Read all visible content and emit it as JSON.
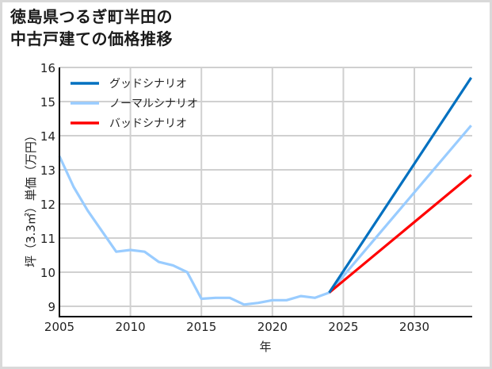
{
  "title_lines": [
    "徳島県つるぎ町半田の",
    "中古戸建ての価格推移"
  ],
  "chart_data": {
    "type": "line",
    "title": "徳島県つるぎ町半田の中古戸建ての価格推移",
    "xlabel": "年",
    "ylabel": "坪（3.3㎡）単価（万円）",
    "xlim": [
      2005,
      2034
    ],
    "ylim": [
      8.7,
      16
    ],
    "xticks": [
      2005,
      2010,
      2015,
      2020,
      2025,
      2030
    ],
    "yticks": [
      9,
      10,
      11,
      12,
      13,
      14,
      15,
      16
    ],
    "grid": true,
    "legend_position": "upper left",
    "series": [
      {
        "name": "ノーマルシナリオ",
        "role": "historical",
        "color": "#99ccff",
        "x": [
          2005,
          2006,
          2007,
          2008,
          2009,
          2010,
          2011,
          2012,
          2013,
          2014,
          2015,
          2016,
          2017,
          2018,
          2019,
          2020,
          2021,
          2022,
          2023,
          2024
        ],
        "values": [
          13.4,
          12.5,
          11.8,
          11.2,
          10.6,
          10.65,
          10.6,
          10.3,
          10.2,
          10.0,
          9.22,
          9.25,
          9.25,
          9.05,
          9.1,
          9.18,
          9.18,
          9.3,
          9.25,
          9.4
        ]
      },
      {
        "name": "グッドシナリオ",
        "color": "#0070c0",
        "x": [
          2024,
          2034
        ],
        "values": [
          9.4,
          15.7
        ]
      },
      {
        "name": "ノーマルシナリオ",
        "color": "#99ccff",
        "x": [
          2024,
          2034
        ],
        "values": [
          9.4,
          14.3
        ]
      },
      {
        "name": "バッドシナリオ",
        "color": "#ff0000",
        "x": [
          2024,
          2034
        ],
        "values": [
          9.4,
          12.85
        ]
      }
    ],
    "legend": [
      {
        "label": "グッドシナリオ",
        "color": "#0070c0"
      },
      {
        "label": "ノーマルシナリオ",
        "color": "#99ccff"
      },
      {
        "label": "バッドシナリオ",
        "color": "#ff0000"
      }
    ]
  }
}
